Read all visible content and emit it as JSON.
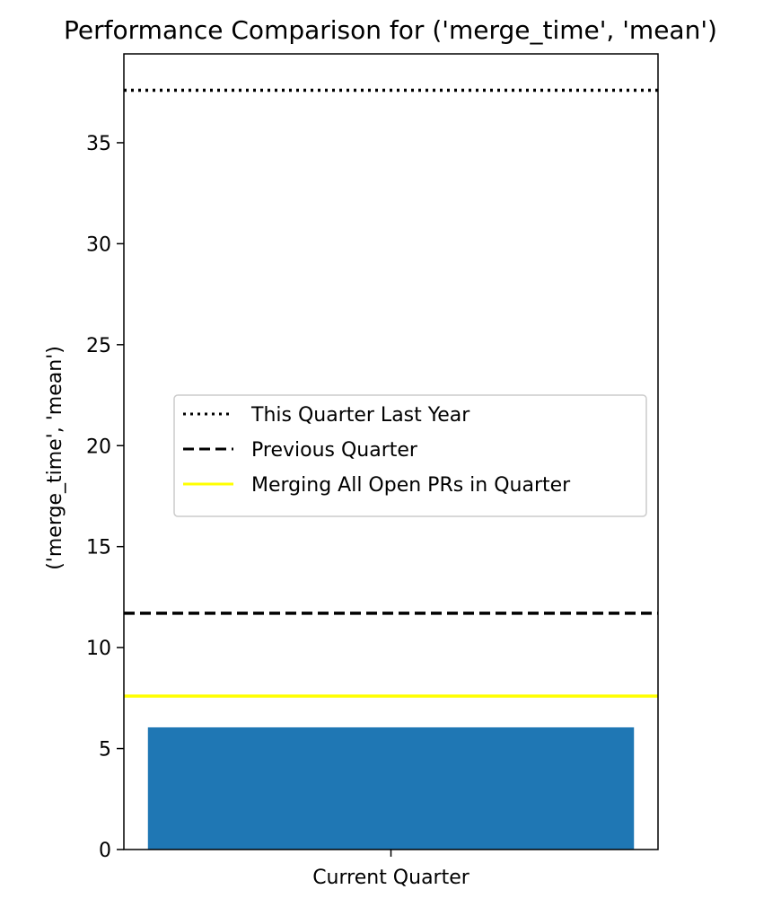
{
  "chart_data": {
    "type": "bar",
    "title": "Performance Comparison for ('merge_time', 'mean')",
    "xlabel": "",
    "ylabel": "('merge_time', 'mean')",
    "categories": [
      "Current Quarter"
    ],
    "values": [
      6.05
    ],
    "ylim": [
      0,
      39.4
    ],
    "yticks": [
      0,
      5,
      10,
      15,
      20,
      25,
      30,
      35
    ],
    "bar_color": "#1f77b4",
    "grid": false,
    "reference_lines": [
      {
        "name": "This Quarter Last Year",
        "value": 37.6,
        "style": "dotted",
        "color": "#000000"
      },
      {
        "name": "Previous Quarter",
        "value": 11.7,
        "style": "dashed",
        "color": "#000000"
      },
      {
        "name": "Merging All Open PRs in Quarter",
        "value": 7.6,
        "style": "solid",
        "color": "#ffff00"
      }
    ],
    "legend": {
      "placement": "center-right"
    }
  }
}
